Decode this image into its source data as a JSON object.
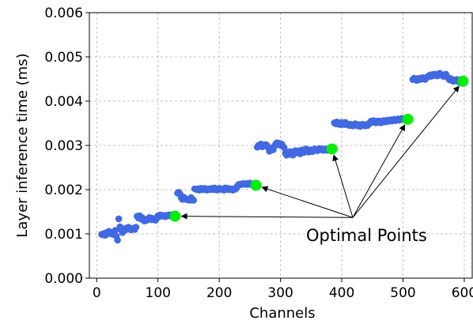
{
  "chart_data": {
    "type": "scatter",
    "xlabel": "Channels",
    "ylabel": "Layer inference time (ms)",
    "xlim": [
      -12,
      613
    ],
    "ylim": [
      0,
      0.006
    ],
    "xticks": [
      0,
      100,
      200,
      300,
      400,
      500,
      600
    ],
    "yticks": [
      0.0,
      0.001,
      0.002,
      0.003,
      0.004,
      0.005,
      0.006
    ],
    "xtick_labels": [
      "0",
      "100",
      "200",
      "300",
      "400",
      "500",
      "600"
    ],
    "ytick_labels": [
      "0.000",
      "0.001",
      "0.002",
      "0.003",
      "0.004",
      "0.005",
      "0.006"
    ],
    "grid": true,
    "point_color": "#4169e1",
    "optimal_color": "#00ee00",
    "points": [
      [
        8,
        0.00099
      ],
      [
        10,
        0.00098
      ],
      [
        12,
        0.00101
      ],
      [
        14,
        0.00097
      ],
      [
        16,
        0.00103
      ],
      [
        18,
        0.001
      ],
      [
        20,
        0.00106
      ],
      [
        22,
        0.00104
      ],
      [
        24,
        0.00101
      ],
      [
        26,
        0.00099
      ],
      [
        28,
        0.00104
      ],
      [
        30,
        0.00108
      ],
      [
        32,
        0.00095
      ],
      [
        34,
        0.00086
      ],
      [
        36,
        0.00134
      ],
      [
        38,
        0.00116
      ],
      [
        40,
        0.00109
      ],
      [
        42,
        0.00103
      ],
      [
        44,
        0.00109
      ],
      [
        46,
        0.00108
      ],
      [
        48,
        0.00113
      ],
      [
        50,
        0.00111
      ],
      [
        52,
        0.00115
      ],
      [
        54,
        0.00112
      ],
      [
        56,
        0.00109
      ],
      [
        58,
        0.00111
      ],
      [
        60,
        0.00113
      ],
      [
        62,
        0.0011
      ],
      [
        64,
        0.00115
      ],
      [
        66,
        0.0014
      ],
      [
        68,
        0.00136
      ],
      [
        70,
        0.00141
      ],
      [
        72,
        0.00134
      ],
      [
        74,
        0.00137
      ],
      [
        76,
        0.00131
      ],
      [
        78,
        0.00129
      ],
      [
        80,
        0.00133
      ],
      [
        82,
        0.00131
      ],
      [
        84,
        0.00134
      ],
      [
        86,
        0.00137
      ],
      [
        88,
        0.00136
      ],
      [
        90,
        0.00132
      ],
      [
        92,
        0.00135
      ],
      [
        94,
        0.00133
      ],
      [
        96,
        0.00131
      ],
      [
        98,
        0.00135
      ],
      [
        100,
        0.00141
      ],
      [
        102,
        0.0014
      ],
      [
        104,
        0.00143
      ],
      [
        106,
        0.0014
      ],
      [
        108,
        0.00142
      ],
      [
        110,
        0.00141
      ],
      [
        112,
        0.00139
      ],
      [
        114,
        0.00142
      ],
      [
        116,
        0.00141
      ],
      [
        118,
        0.00143
      ],
      [
        120,
        0.00141
      ],
      [
        122,
        0.00143
      ],
      [
        124,
        0.00139
      ],
      [
        132,
        0.00192
      ],
      [
        134,
        0.00194
      ],
      [
        136,
        0.0019
      ],
      [
        138,
        0.00182
      ],
      [
        140,
        0.00178
      ],
      [
        142,
        0.00183
      ],
      [
        144,
        0.0018
      ],
      [
        146,
        0.00178
      ],
      [
        148,
        0.00177
      ],
      [
        150,
        0.00178
      ],
      [
        152,
        0.00176
      ],
      [
        154,
        0.00182
      ],
      [
        156,
        0.00179
      ],
      [
        158,
        0.00176
      ],
      [
        160,
        0.00202
      ],
      [
        162,
        0.00201
      ],
      [
        164,
        0.002
      ],
      [
        166,
        0.00202
      ],
      [
        168,
        0.00199
      ],
      [
        170,
        0.00203
      ],
      [
        172,
        0.00201
      ],
      [
        174,
        0.002
      ],
      [
        176,
        0.00203
      ],
      [
        178,
        0.00201
      ],
      [
        180,
        0.00199
      ],
      [
        182,
        0.00202
      ],
      [
        184,
        0.002
      ],
      [
        186,
        0.00201
      ],
      [
        188,
        0.00203
      ],
      [
        190,
        0.002
      ],
      [
        192,
        0.00204
      ],
      [
        194,
        0.00201
      ],
      [
        196,
        0.00199
      ],
      [
        198,
        0.00202
      ],
      [
        200,
        0.00203
      ],
      [
        202,
        0.00201
      ],
      [
        204,
        0.002
      ],
      [
        206,
        0.00202
      ],
      [
        208,
        0.00199
      ],
      [
        210,
        0.00204
      ],
      [
        212,
        0.00201
      ],
      [
        214,
        0.00203
      ],
      [
        216,
        0.002
      ],
      [
        218,
        0.00202
      ],
      [
        220,
        0.00201
      ],
      [
        222,
        0.00199
      ],
      [
        224,
        0.00202
      ],
      [
        226,
        0.00201
      ],
      [
        228,
        0.00203
      ],
      [
        230,
        0.00209
      ],
      [
        232,
        0.00212
      ],
      [
        234,
        0.00211
      ],
      [
        236,
        0.00213
      ],
      [
        238,
        0.00212
      ],
      [
        240,
        0.00214
      ],
      [
        242,
        0.00213
      ],
      [
        244,
        0.00212
      ],
      [
        246,
        0.00214
      ],
      [
        248,
        0.00212
      ],
      [
        250,
        0.00215
      ],
      [
        252,
        0.00213
      ],
      [
        254,
        0.00211
      ],
      [
        256,
        0.00213
      ],
      [
        262,
        0.00296
      ],
      [
        264,
        0.003
      ],
      [
        266,
        0.00298
      ],
      [
        268,
        0.00303
      ],
      [
        270,
        0.00297
      ],
      [
        272,
        0.00301
      ],
      [
        274,
        0.00299
      ],
      [
        276,
        0.00302
      ],
      [
        278,
        0.003
      ],
      [
        280,
        0.00295
      ],
      [
        282,
        0.00287
      ],
      [
        284,
        0.00291
      ],
      [
        286,
        0.00294
      ],
      [
        288,
        0.0029
      ],
      [
        290,
        0.00298
      ],
      [
        292,
        0.00303
      ],
      [
        294,
        0.00306
      ],
      [
        296,
        0.00302
      ],
      [
        298,
        0.00305
      ],
      [
        300,
        0.003
      ],
      [
        302,
        0.00303
      ],
      [
        304,
        0.00298
      ],
      [
        306,
        0.00295
      ],
      [
        308,
        0.00282
      ],
      [
        310,
        0.00278
      ],
      [
        312,
        0.00284
      ],
      [
        314,
        0.0028
      ],
      [
        316,
        0.00286
      ],
      [
        318,
        0.00283
      ],
      [
        320,
        0.00278
      ],
      [
        322,
        0.00281
      ],
      [
        324,
        0.00288
      ],
      [
        326,
        0.00285
      ],
      [
        328,
        0.00283
      ],
      [
        330,
        0.00288
      ],
      [
        332,
        0.00281
      ],
      [
        334,
        0.00286
      ],
      [
        336,
        0.0029
      ],
      [
        338,
        0.00284
      ],
      [
        340,
        0.00288
      ],
      [
        342,
        0.00292
      ],
      [
        344,
        0.0029
      ],
      [
        346,
        0.00285
      ],
      [
        348,
        0.00287
      ],
      [
        350,
        0.0029
      ],
      [
        352,
        0.00286
      ],
      [
        354,
        0.00289
      ],
      [
        356,
        0.00292
      ],
      [
        358,
        0.0029
      ],
      [
        360,
        0.00288
      ],
      [
        362,
        0.00291
      ],
      [
        364,
        0.00293
      ],
      [
        366,
        0.0029
      ],
      [
        368,
        0.00292
      ],
      [
        370,
        0.00289
      ],
      [
        372,
        0.00291
      ],
      [
        374,
        0.00292
      ],
      [
        376,
        0.00289
      ],
      [
        378,
        0.00291
      ],
      [
        388,
        0.00351
      ],
      [
        390,
        0.00349
      ],
      [
        392,
        0.00353
      ],
      [
        394,
        0.00348
      ],
      [
        396,
        0.0035
      ],
      [
        398,
        0.00347
      ],
      [
        400,
        0.00352
      ],
      [
        402,
        0.0035
      ],
      [
        404,
        0.00347
      ],
      [
        406,
        0.00352
      ],
      [
        408,
        0.00349
      ],
      [
        410,
        0.00347
      ],
      [
        412,
        0.00345
      ],
      [
        414,
        0.00348
      ],
      [
        416,
        0.00346
      ],
      [
        418,
        0.00344
      ],
      [
        420,
        0.00347
      ],
      [
        422,
        0.00349
      ],
      [
        424,
        0.00346
      ],
      [
        426,
        0.00344
      ],
      [
        428,
        0.00347
      ],
      [
        430,
        0.00343
      ],
      [
        432,
        0.00345
      ],
      [
        434,
        0.00348
      ],
      [
        436,
        0.00346
      ],
      [
        438,
        0.00344
      ],
      [
        440,
        0.00347
      ],
      [
        442,
        0.00345
      ],
      [
        444,
        0.00348
      ],
      [
        446,
        0.00352
      ],
      [
        448,
        0.00355
      ],
      [
        450,
        0.00352
      ],
      [
        452,
        0.00356
      ],
      [
        454,
        0.00353
      ],
      [
        456,
        0.00351
      ],
      [
        458,
        0.00355
      ],
      [
        460,
        0.00352
      ],
      [
        462,
        0.00355
      ],
      [
        464,
        0.00351
      ],
      [
        466,
        0.00354
      ],
      [
        468,
        0.00356
      ],
      [
        470,
        0.00353
      ],
      [
        472,
        0.00355
      ],
      [
        474,
        0.00357
      ],
      [
        476,
        0.00354
      ],
      [
        478,
        0.00356
      ],
      [
        480,
        0.00358
      ],
      [
        482,
        0.00355
      ],
      [
        484,
        0.00357
      ],
      [
        486,
        0.00359
      ],
      [
        488,
        0.00356
      ],
      [
        490,
        0.00358
      ],
      [
        492,
        0.0036
      ],
      [
        494,
        0.00357
      ],
      [
        496,
        0.00359
      ],
      [
        498,
        0.00361
      ],
      [
        500,
        0.00359
      ],
      [
        516,
        0.00449
      ],
      [
        518,
        0.00452
      ],
      [
        520,
        0.0045
      ],
      [
        522,
        0.00447
      ],
      [
        524,
        0.00451
      ],
      [
        526,
        0.00448
      ],
      [
        528,
        0.00452
      ],
      [
        530,
        0.0045
      ],
      [
        532,
        0.00453
      ],
      [
        534,
        0.00451
      ],
      [
        536,
        0.00449
      ],
      [
        538,
        0.00452
      ],
      [
        540,
        0.00455
      ],
      [
        542,
        0.00457
      ],
      [
        544,
        0.00459
      ],
      [
        546,
        0.00456
      ],
      [
        548,
        0.0046
      ],
      [
        550,
        0.00458
      ],
      [
        552,
        0.00461
      ],
      [
        554,
        0.00459
      ],
      [
        556,
        0.00457
      ],
      [
        558,
        0.00461
      ],
      [
        560,
        0.00463
      ],
      [
        562,
        0.0046
      ],
      [
        564,
        0.00458
      ],
      [
        566,
        0.00456
      ],
      [
        568,
        0.00459
      ],
      [
        570,
        0.00461
      ],
      [
        572,
        0.00455
      ],
      [
        574,
        0.00452
      ],
      [
        576,
        0.00448
      ],
      [
        578,
        0.00451
      ],
      [
        580,
        0.00447
      ],
      [
        582,
        0.00445
      ],
      [
        584,
        0.00448
      ],
      [
        586,
        0.00446
      ],
      [
        588,
        0.00449
      ],
      [
        590,
        0.00446
      ],
      [
        592,
        0.00443
      ],
      [
        594,
        0.00445
      ]
    ],
    "optimal_points": [
      [
        128,
        0.0014
      ],
      [
        260,
        0.0021
      ],
      [
        384,
        0.00292
      ],
      [
        508,
        0.00359
      ],
      [
        598,
        0.00445
      ]
    ],
    "annotation": {
      "text": "Optimal Points",
      "origin": [
        418,
        0.00137
      ]
    }
  }
}
